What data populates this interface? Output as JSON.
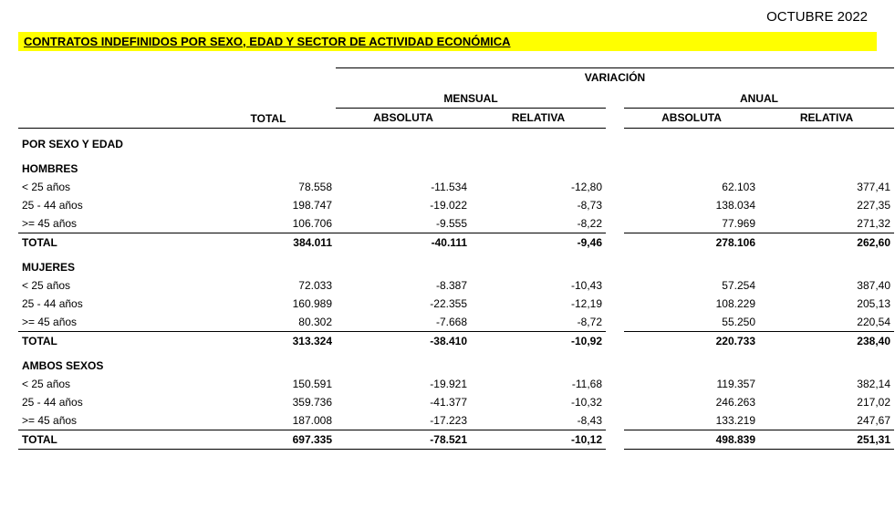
{
  "date_header": "OCTUBRE 2022",
  "title": "CONTRATOS INDEFINIDOS POR SEXO, EDAD Y SECTOR DE ACTIVIDAD ECONÓMICA",
  "headers": {
    "total": "TOTAL",
    "variacion": "VARIACIÓN",
    "mensual": "MENSUAL",
    "anual": "ANUAL",
    "absoluta": "ABSOLUTA",
    "relativa": "RELATIVA"
  },
  "section1_title": "POR SEXO Y EDAD",
  "groups": [
    {
      "name": "HOMBRES",
      "rows": [
        {
          "label": "< 25 años",
          "total": "78.558",
          "m_abs": "-11.534",
          "m_rel": "-12,80",
          "a_abs": "62.103",
          "a_rel": "377,41"
        },
        {
          "label": "25 - 44 años",
          "total": "198.747",
          "m_abs": "-19.022",
          "m_rel": "-8,73",
          "a_abs": "138.034",
          "a_rel": "227,35"
        },
        {
          "label": ">= 45 años",
          "total": "106.706",
          "m_abs": "-9.555",
          "m_rel": "-8,22",
          "a_abs": "77.969",
          "a_rel": "271,32"
        }
      ],
      "subtotal": {
        "label": "TOTAL",
        "total": "384.011",
        "m_abs": "-40.111",
        "m_rel": "-9,46",
        "a_abs": "278.106",
        "a_rel": "262,60"
      }
    },
    {
      "name": "MUJERES",
      "rows": [
        {
          "label": "< 25 años",
          "total": "72.033",
          "m_abs": "-8.387",
          "m_rel": "-10,43",
          "a_abs": "57.254",
          "a_rel": "387,40"
        },
        {
          "label": "25 - 44 años",
          "total": "160.989",
          "m_abs": "-22.355",
          "m_rel": "-12,19",
          "a_abs": "108.229",
          "a_rel": "205,13"
        },
        {
          "label": ">= 45 años",
          "total": "80.302",
          "m_abs": "-7.668",
          "m_rel": "-8,72",
          "a_abs": "55.250",
          "a_rel": "220,54"
        }
      ],
      "subtotal": {
        "label": "TOTAL",
        "total": "313.324",
        "m_abs": "-38.410",
        "m_rel": "-10,92",
        "a_abs": "220.733",
        "a_rel": "238,40"
      }
    },
    {
      "name": "AMBOS SEXOS",
      "rows": [
        {
          "label": "< 25 años",
          "total": "150.591",
          "m_abs": "-19.921",
          "m_rel": "-11,68",
          "a_abs": "119.357",
          "a_rel": "382,14"
        },
        {
          "label": "25 - 44 años",
          "total": "359.736",
          "m_abs": "-41.377",
          "m_rel": "-10,32",
          "a_abs": "246.263",
          "a_rel": "217,02"
        },
        {
          "label": ">= 45 años",
          "total": "187.008",
          "m_abs": "-17.223",
          "m_rel": "-8,43",
          "a_abs": "133.219",
          "a_rel": "247,67"
        }
      ],
      "grand_total": {
        "label": "TOTAL",
        "total": "697.335",
        "m_abs": "-78.521",
        "m_rel": "-10,12",
        "a_abs": "498.839",
        "a_rel": "251,31"
      }
    }
  ]
}
